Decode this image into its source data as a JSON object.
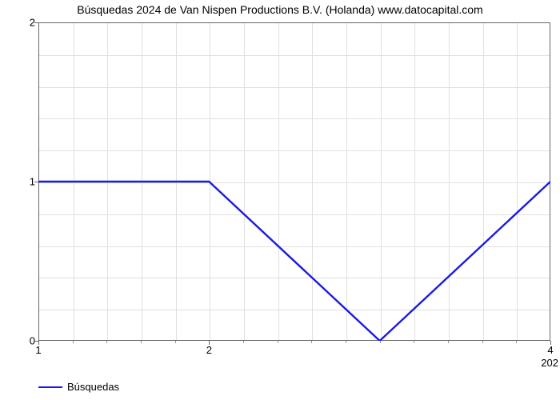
{
  "chart": {
    "type": "line",
    "title": "Búsquedas 2024 de Van Nispen Productions B.V. (Holanda) www.datocapital.com",
    "title_fontsize": 14,
    "title_color": "#000000",
    "background_color": "#ffffff",
    "plot_border_color": "#666666",
    "grid_color": "#e0e0e0",
    "tick_label_fontsize": 13,
    "tick_label_color": "#000000",
    "x": {
      "min": 1,
      "max": 4,
      "major_ticks": [
        1,
        2,
        4
      ],
      "minor_tick_count": 15
    },
    "y": {
      "min": 0,
      "max": 2,
      "major_ticks": [
        0,
        1,
        2
      ],
      "minor_tick_count_per_major": 4
    },
    "corner_label": "202",
    "series": {
      "name": "Búsquedas",
      "color": "#1a1ae6",
      "line_width": 2.4,
      "x_values": [
        1,
        2,
        3,
        4
      ],
      "y_values": [
        1,
        1,
        0,
        1
      ]
    },
    "legend": {
      "position": "bottom-left",
      "fontsize": 13
    }
  }
}
